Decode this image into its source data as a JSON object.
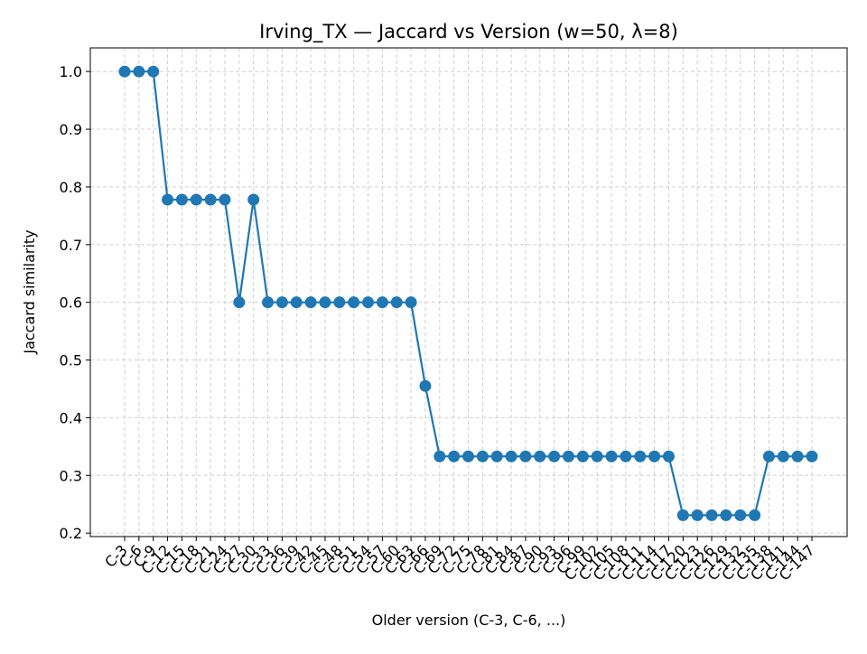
{
  "chart_data": {
    "type": "line",
    "title": "Irving_TX — Jaccard vs Version (w=50, λ=8)",
    "x_label": "Older version (C-3, C-6, ...)",
    "y_label": "Jaccard similarity",
    "categories": [
      "C-3",
      "C-6",
      "C-9",
      "C-12",
      "C-15",
      "C-18",
      "C-21",
      "C-24",
      "C-27",
      "C-30",
      "C-33",
      "C-36",
      "C-39",
      "C-42",
      "C-45",
      "C-48",
      "C-51",
      "C-54",
      "C-57",
      "C-60",
      "C-63",
      "C-66",
      "C-69",
      "C-72",
      "C-75",
      "C-78",
      "C-81",
      "C-84",
      "C-87",
      "C-90",
      "C-93",
      "C-96",
      "C-99",
      "C-102",
      "C-105",
      "C-108",
      "C-111",
      "C-114",
      "C-117",
      "C-120",
      "C-123",
      "C-126",
      "C-129",
      "C-132",
      "C-135",
      "C-138",
      "C-141",
      "C-144",
      "C-147"
    ],
    "series": [
      {
        "name": "Jaccard",
        "color": "#1f77b4",
        "values": [
          1.0,
          1.0,
          1.0,
          0.778,
          0.778,
          0.778,
          0.778,
          0.778,
          0.6,
          0.778,
          0.6,
          0.6,
          0.6,
          0.6,
          0.6,
          0.6,
          0.6,
          0.6,
          0.6,
          0.6,
          0.6,
          0.455,
          0.333,
          0.333,
          0.333,
          0.333,
          0.333,
          0.333,
          0.333,
          0.333,
          0.333,
          0.333,
          0.333,
          0.333,
          0.333,
          0.333,
          0.333,
          0.333,
          0.333,
          0.231,
          0.231,
          0.231,
          0.231,
          0.231,
          0.231,
          0.333,
          0.333,
          0.333,
          0.333
        ]
      }
    ],
    "ylim": [
      0.194,
      1.041
    ],
    "yticks": [
      0.2,
      0.3,
      0.4,
      0.5,
      0.6,
      0.7,
      0.8,
      0.9,
      {
        "value": 1,
        "label": "1.0"
      }
    ],
    "grid": true
  }
}
